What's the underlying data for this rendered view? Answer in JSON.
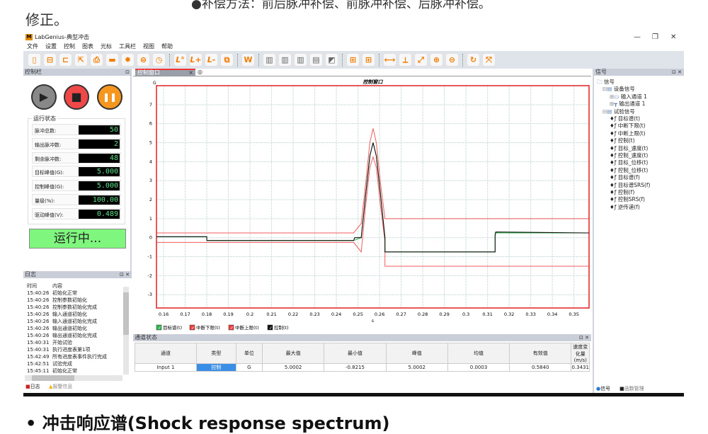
{
  "doc": {
    "top_text": "●补偿方法：前后脉冲补偿、前脉冲补偿、后脉冲补偿。",
    "fix_text": "修正。",
    "bottom_heading": "• 冲击响应谱(Shock response spectrum)"
  },
  "window": {
    "title": "LabGenius-典型冲击",
    "logo": "M",
    "controls": [
      "—",
      "❐",
      "✕"
    ]
  },
  "menu": [
    "文件",
    "设置",
    "控制",
    "图表",
    "光标",
    "工具栏",
    "视图",
    "帮助"
  ],
  "toolbar": [
    "new-file",
    "save",
    "open-folder",
    "export",
    "print-report",
    "ruler",
    "settings-gear",
    "spectrum",
    "clock",
    "|",
    "limit-L0",
    "limit-L-plus",
    "limit-L-minus",
    "copy-window",
    "|",
    "word-report",
    "|",
    "bars-1",
    "bars-2",
    "bars-3",
    "dataset",
    "chart-trend",
    "|",
    "layout-1",
    "layout-2",
    "|",
    "cursor-horizontal",
    "cursor-vertical",
    "cursor-diagonal",
    "zoom-in",
    "zoom-out",
    "|",
    "refresh",
    "fit-window"
  ],
  "left": {
    "title": "控制栏",
    "buttons": {
      "play": "▶",
      "stop": "■",
      "pause": "❚❚"
    },
    "status_group": "运行状态",
    "status": [
      {
        "label": "脉冲总数:",
        "value": "50"
      },
      {
        "label": "输出脉冲数:",
        "value": "2"
      },
      {
        "label": "剩余脉冲数:",
        "value": "48"
      },
      {
        "label": "目标峰值(G):",
        "value": "5.000"
      },
      {
        "label": "控制峰值(G):",
        "value": "5.000"
      },
      {
        "label": "量级(%):",
        "value": "100.00"
      },
      {
        "label": "驱动峰值(V):",
        "value": "0.489"
      }
    ],
    "running": "运行中..."
  },
  "log": {
    "title": "日志",
    "headers": [
      "时间",
      "内容"
    ],
    "rows": [
      [
        "15:40:26",
        "初始化正常"
      ],
      [
        "15:40:26",
        "控制参数初始化"
      ],
      [
        "15:40:26",
        "控制参数初始化完成"
      ],
      [
        "15:40:26",
        "输入通道初始化"
      ],
      [
        "15:40:26",
        "输入通道初始化完成"
      ],
      [
        "15:40:26",
        "输出通道初始化"
      ],
      [
        "15:40:26",
        "输出通道初始化完成"
      ],
      [
        "15:40:31",
        "开始试验"
      ],
      [
        "15:40:31",
        "执行进度表第1项"
      ],
      [
        "15:42:49",
        "所有进度表事件执行完成"
      ],
      [
        "15:42:51",
        "试验完成"
      ],
      [
        "15:45:11",
        "初始化正常"
      ]
    ],
    "tabs": [
      "日志",
      "报警信息"
    ]
  },
  "center": {
    "tab": "控制窗口"
  },
  "chart_data": {
    "type": "line",
    "title": "控制窗口",
    "ylabel": "G",
    "xlabel": "s",
    "xlim": [
      0.1567,
      0.357
    ],
    "ylim": [
      -3.7,
      8
    ],
    "xticks": [
      0.16,
      0.17,
      0.18,
      0.19,
      0.2,
      0.21,
      0.22,
      0.23,
      0.24,
      0.25,
      0.26,
      0.27,
      0.28,
      0.29,
      0.3,
      0.31,
      0.32,
      0.33,
      0.34,
      0.35
    ],
    "xtick_labels": [
      "0.16",
      "0.17",
      "0.18",
      "0.19",
      "0.2",
      "0.21",
      "0.22",
      "0.23",
      "0.24",
      "0.25",
      "0.26",
      "0.27",
      "0.28",
      "0.29",
      "0.3",
      "0.31",
      "0.32",
      "0.33",
      "0.34",
      "0.35"
    ],
    "yticks": [
      -3,
      -2,
      -1,
      0,
      1,
      2,
      3,
      4,
      5,
      6,
      7
    ],
    "ytick_labels": [
      "-3",
      "-2",
      "-1",
      "0",
      "1",
      "2",
      "3",
      "4",
      "5",
      "6",
      "7"
    ],
    "grid": true,
    "legend": "bottom-left",
    "series": [
      {
        "name": "目标谱(t)",
        "color": "#2db84a",
        "x": [
          0.1567,
          0.18,
          0.18,
          0.248,
          0.2515,
          0.2535,
          0.2555,
          0.257,
          0.2585,
          0.2605,
          0.2625,
          0.2625,
          0.3135,
          0.3135,
          0.357
        ],
        "y": [
          0.05,
          0.05,
          -0.15,
          -0.15,
          0,
          2.2,
          4.3,
          5,
          4.3,
          2.2,
          0,
          -0.75,
          -0.75,
          0.25,
          0.25
        ]
      },
      {
        "name": "中断下限(t)",
        "color": "#f04040",
        "x": [
          0.1567,
          0.248,
          0.2515,
          0.2535,
          0.2555,
          0.257,
          0.2585,
          0.2605,
          0.2625,
          0.2625,
          0.357
        ],
        "y": [
          -0.25,
          -0.25,
          -0.75,
          1.6,
          3.7,
          4.25,
          3.7,
          1.6,
          -0.2,
          -1.5,
          -1.5
        ]
      },
      {
        "name": "中断上限(t)",
        "color": "#f04040",
        "x": [
          0.1567,
          0.248,
          0.2515,
          0.2535,
          0.2555,
          0.257,
          0.2585,
          0.2605,
          0.2625,
          0.2625,
          0.357
        ],
        "y": [
          0.25,
          0.25,
          0.75,
          2.8,
          5.0,
          5.75,
          5.0,
          2.8,
          1.0,
          1.0,
          1.0
        ]
      },
      {
        "name": "控制(t)",
        "color": "#111111",
        "x": [
          0.1567,
          0.18,
          0.18,
          0.248,
          0.2485,
          0.2515,
          0.2535,
          0.2555,
          0.257,
          0.2585,
          0.2605,
          0.2625,
          0.2625,
          0.3135,
          0.3135,
          0.3138,
          0.357
        ],
        "y": [
          0.05,
          0.05,
          -0.15,
          -0.15,
          0,
          0,
          2.2,
          4.3,
          5,
          4.3,
          2.2,
          0,
          -0.75,
          -0.75,
          0.1,
          0.3,
          0.25
        ]
      }
    ]
  },
  "channel_status": {
    "title": "通道状态",
    "headers": [
      "通道",
      "类型",
      "单位",
      "最大值",
      "最小值",
      "峰值",
      "均值",
      "有效值",
      "速度变化量(m/s)"
    ],
    "rows": [
      [
        "Input 1",
        "控制",
        "G",
        "5.0002",
        "-0.8215",
        "5.0002",
        "0.0003",
        "0.5840",
        "0.3431"
      ]
    ],
    "highlight": "#3a8ee6"
  },
  "right": {
    "title": "信号",
    "tree": [
      {
        "label": "信号",
        "level": 0,
        "icon": "folder-icon"
      },
      {
        "label": "设备信号",
        "level": 1,
        "icon": "calendar-icon"
      },
      {
        "label": "输入通道 1",
        "level": 2,
        "icon": "input-channel-icon"
      },
      {
        "label": "输出通道 1",
        "level": 2,
        "icon": "output-channel-icon"
      },
      {
        "label": "试验信号",
        "level": 1,
        "icon": "calendar-icon"
      },
      {
        "label": "目标谱(t)",
        "level": 3,
        "icon": "signal-icon"
      },
      {
        "label": "中断下限(t)",
        "level": 3,
        "icon": "signal-icon"
      },
      {
        "label": "中断上限(t)",
        "level": 3,
        "icon": "signal-icon"
      },
      {
        "label": "控制(t)",
        "level": 3,
        "icon": "signal-icon"
      },
      {
        "label": "目标_速度(t)",
        "level": 3,
        "icon": "signal-icon"
      },
      {
        "label": "控制_速度(t)",
        "level": 3,
        "icon": "signal-icon"
      },
      {
        "label": "目标_位移(t)",
        "level": 3,
        "icon": "signal-icon"
      },
      {
        "label": "控制_位移(t)",
        "level": 3,
        "icon": "signal-icon"
      },
      {
        "label": "目标谱(f)",
        "level": 3,
        "icon": "signal-icon"
      },
      {
        "label": "目标谱SRS(f)",
        "level": 3,
        "icon": "signal-icon"
      },
      {
        "label": "控制(f)",
        "level": 3,
        "icon": "signal-icon"
      },
      {
        "label": "控制SRS(f)",
        "level": 3,
        "icon": "signal-icon"
      },
      {
        "label": "逆传递(f)",
        "level": 3,
        "icon": "signal-icon"
      }
    ],
    "tabs": [
      "信号",
      "函数管理"
    ]
  }
}
